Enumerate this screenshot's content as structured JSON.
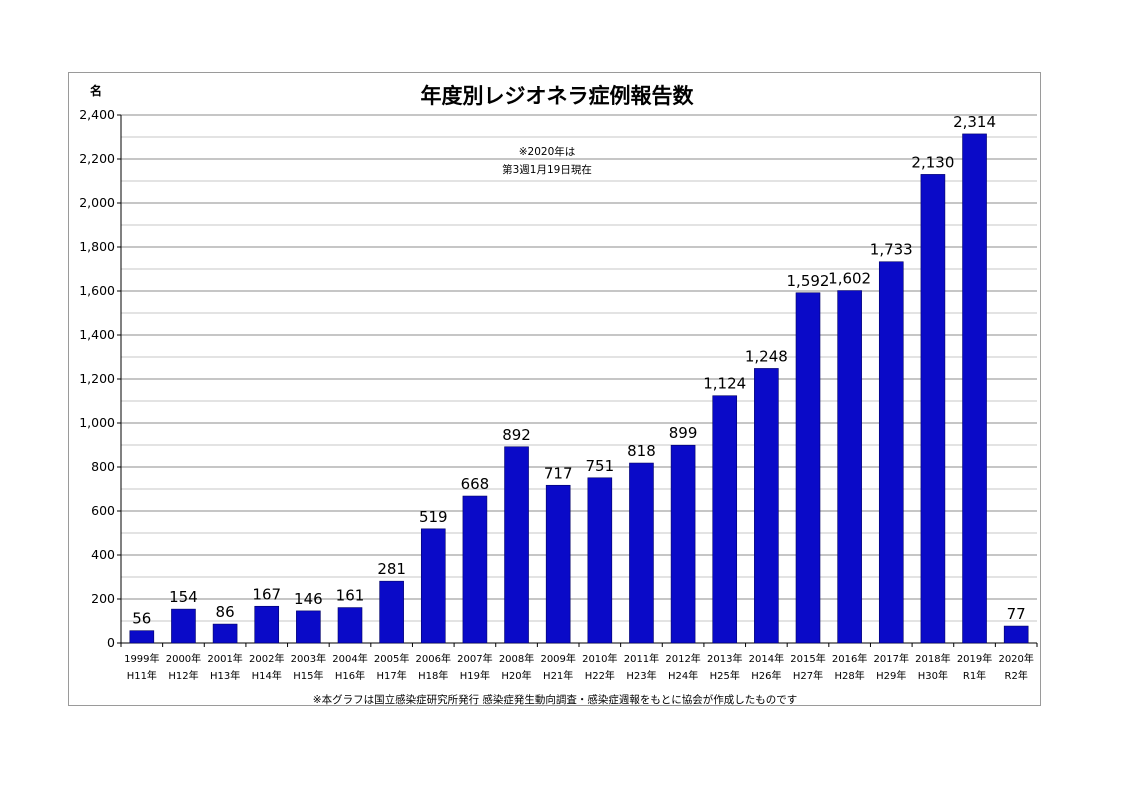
{
  "chart_data": {
    "type": "bar",
    "title": "年度別レジオネラ症例報告数",
    "unit_label": "名",
    "ylim": [
      0,
      2400
    ],
    "ytick_step": 200,
    "grid": true,
    "categories_line1": [
      "1999年",
      "2000年",
      "2001年",
      "2002年",
      "2003年",
      "2004年",
      "2005年",
      "2006年",
      "2007年",
      "2008年",
      "2009年",
      "2010年",
      "2011年",
      "2012年",
      "2013年",
      "2014年",
      "2015年",
      "2016年",
      "2017年",
      "2018年",
      "2019年",
      "2020年"
    ],
    "categories_line2": [
      "H11年",
      "H12年",
      "H13年",
      "H14年",
      "H15年",
      "H16年",
      "H17年",
      "H18年",
      "H19年",
      "H20年",
      "H21年",
      "H22年",
      "H23年",
      "H24年",
      "H25年",
      "H26年",
      "H27年",
      "H28年",
      "H29年",
      "H30年",
      "R1年",
      "R2年"
    ],
    "values": [
      56,
      154,
      86,
      167,
      146,
      161,
      281,
      519,
      668,
      892,
      717,
      751,
      818,
      899,
      1124,
      1248,
      1592,
      1602,
      1733,
      2130,
      2314,
      77
    ],
    "data_labels": [
      "56",
      "154",
      "86",
      "167",
      "146",
      "161",
      "281",
      "519",
      "668",
      "892",
      "717",
      "751",
      "818",
      "899",
      "1,124",
      "1,248",
      "1,592",
      "1,602",
      "1,733",
      "2,130",
      "2,314",
      "77"
    ],
    "highlight_index": 21,
    "annotation": [
      "※2020年は",
      "第3週1月19日現在"
    ],
    "footer": "※本グラフは国立感染症研究所発行 感染症発生動向調査・感染症週報をもとに協会が作成したものです",
    "colors": {
      "bar": "#0a0ac8",
      "bar_edge": "#000066",
      "highlight_label": "#ff0000",
      "grid_major": "#8c8c8c",
      "grid_minor": "#b4b4b4"
    }
  }
}
